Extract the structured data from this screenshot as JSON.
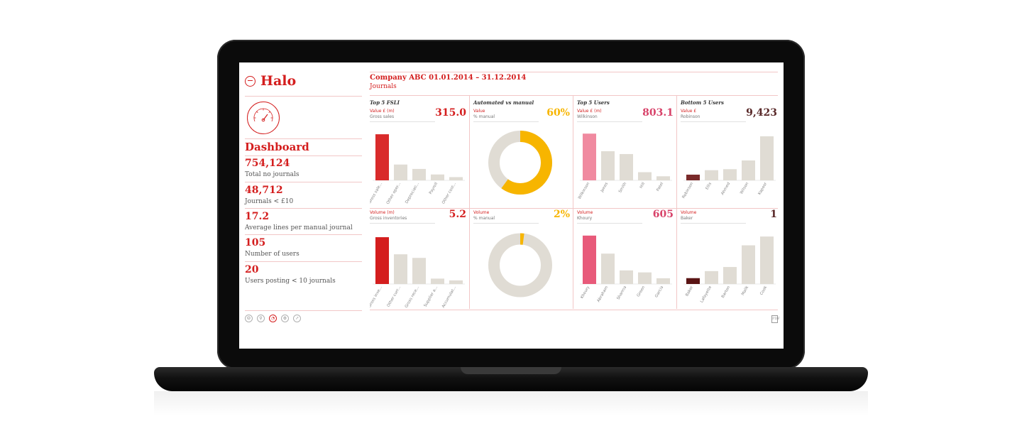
{
  "app": {
    "name": "Halo"
  },
  "sidebar": {
    "section_title": "Dashboard",
    "metrics": [
      {
        "value": "754,124",
        "label": "Total no journals"
      },
      {
        "value": "48,712",
        "label": "Journals < £10"
      },
      {
        "value": "17.2",
        "label": "Average lines per manual journal"
      },
      {
        "value": "105",
        "label": "Number of users"
      },
      {
        "value": "20",
        "label": "Users posting < 10 journals"
      }
    ],
    "footer_icons": [
      "user-icon",
      "search-icon",
      "dashboard-icon",
      "settings-icon",
      "export-icon"
    ]
  },
  "header": {
    "title": "Company ABC 01.01.2014 – 31.12.2014",
    "subtitle": "Journals"
  },
  "panels": [
    {
      "title": "Top 5 FSLI",
      "top": {
        "label": "Value £ (m)",
        "sub": "Gross sales",
        "value": "315.0"
      },
      "bottom": {
        "label": "Volume (m)",
        "sub": "Gross inventories",
        "value": "5.2"
      }
    },
    {
      "title": "Automated vs manual",
      "top": {
        "label": "Value",
        "sub": "% manual",
        "value": "60%"
      },
      "bottom": {
        "label": "Volume",
        "sub": "% manual",
        "value": "2%"
      }
    },
    {
      "title": "Top 5 Users",
      "top": {
        "label": "Value £ (m)",
        "sub": "Wilkinson",
        "value": "803.1"
      },
      "bottom": {
        "label": "Volume",
        "sub": "Khoury",
        "value": "605"
      }
    },
    {
      "title": "Bottom 5 Users",
      "top": {
        "label": "Value £",
        "sub": "Robinson",
        "value": "9,423"
      },
      "bottom": {
        "label": "Volume",
        "sub": "Baker",
        "value": "1"
      }
    }
  ],
  "colors": {
    "accent": "#d41e1e",
    "gold": "#f7b500",
    "pink": "#e85a7a",
    "pink_light": "#f08aa0",
    "maroon": "#7a2a2a",
    "neutral": "#e0dcd4"
  },
  "chart_data": [
    {
      "type": "bar",
      "title": "Top 5 FSLI",
      "ylabel": "Value £ (m)",
      "categories": [
        "Gross sale...",
        "Other oper...",
        "Depreciati...",
        "Payroll",
        "Other cost..."
      ],
      "values": [
        315.0,
        108,
        78,
        40,
        22
      ],
      "ylim": [
        0,
        330
      ],
      "highlight_color": "#d92b2b"
    },
    {
      "type": "pie",
      "title": "Automated vs manual",
      "ylabel": "Value",
      "categories": [
        "% manual",
        "automated"
      ],
      "values": [
        60,
        40
      ]
    },
    {
      "type": "bar",
      "title": "Top 5 Users",
      "ylabel": "Value £ (m)",
      "categories": [
        "Wilkinson",
        "Jones",
        "Smith",
        "Hill",
        "Patel"
      ],
      "values": [
        803.1,
        501,
        452,
        140,
        70
      ],
      "ylim": [
        0,
        830
      ],
      "highlight_color": "#f08aa0"
    },
    {
      "type": "bar",
      "title": "Bottom 5 Users",
      "ylabel": "Value £",
      "categories": [
        "Robinson",
        "Ellis",
        "Ahmed",
        "Wilson",
        "Kapoor"
      ],
      "values": [
        9423,
        16800,
        18500,
        33000,
        73000
      ],
      "ylim": [
        0,
        80000
      ],
      "highlight_color": "#7a2a2a"
    },
    {
      "type": "bar",
      "ylabel": "Volume (m)",
      "categories": [
        "Gross inve...",
        "Other curr...",
        "Gross rece...",
        "Supplier a...",
        "Accumulat..."
      ],
      "values": [
        5.2,
        3.3,
        2.9,
        0.6,
        0.4
      ],
      "ylim": [
        0,
        5.6
      ],
      "highlight_color": "#d41e1e"
    },
    {
      "type": "pie",
      "ylabel": "Volume",
      "categories": [
        "% manual",
        "automated"
      ],
      "values": [
        2,
        98
      ]
    },
    {
      "type": "bar",
      "ylabel": "Volume",
      "categories": [
        "Khoury",
        "Abraham",
        "Sharma",
        "Green",
        "Garcia"
      ],
      "values": [
        605,
        380,
        170,
        145,
        72
      ],
      "ylim": [
        0,
        630
      ],
      "highlight_color": "#e85a7a"
    },
    {
      "type": "bar",
      "ylabel": "Volume",
      "categories": [
        "Baker",
        "Lafayette",
        "Barton",
        "Malik",
        "Cook"
      ],
      "values": [
        1,
        2.2,
        2.9,
        6.6,
        8.1
      ],
      "ylim": [
        0,
        8.6
      ],
      "highlight_color": "#5a1414"
    }
  ]
}
